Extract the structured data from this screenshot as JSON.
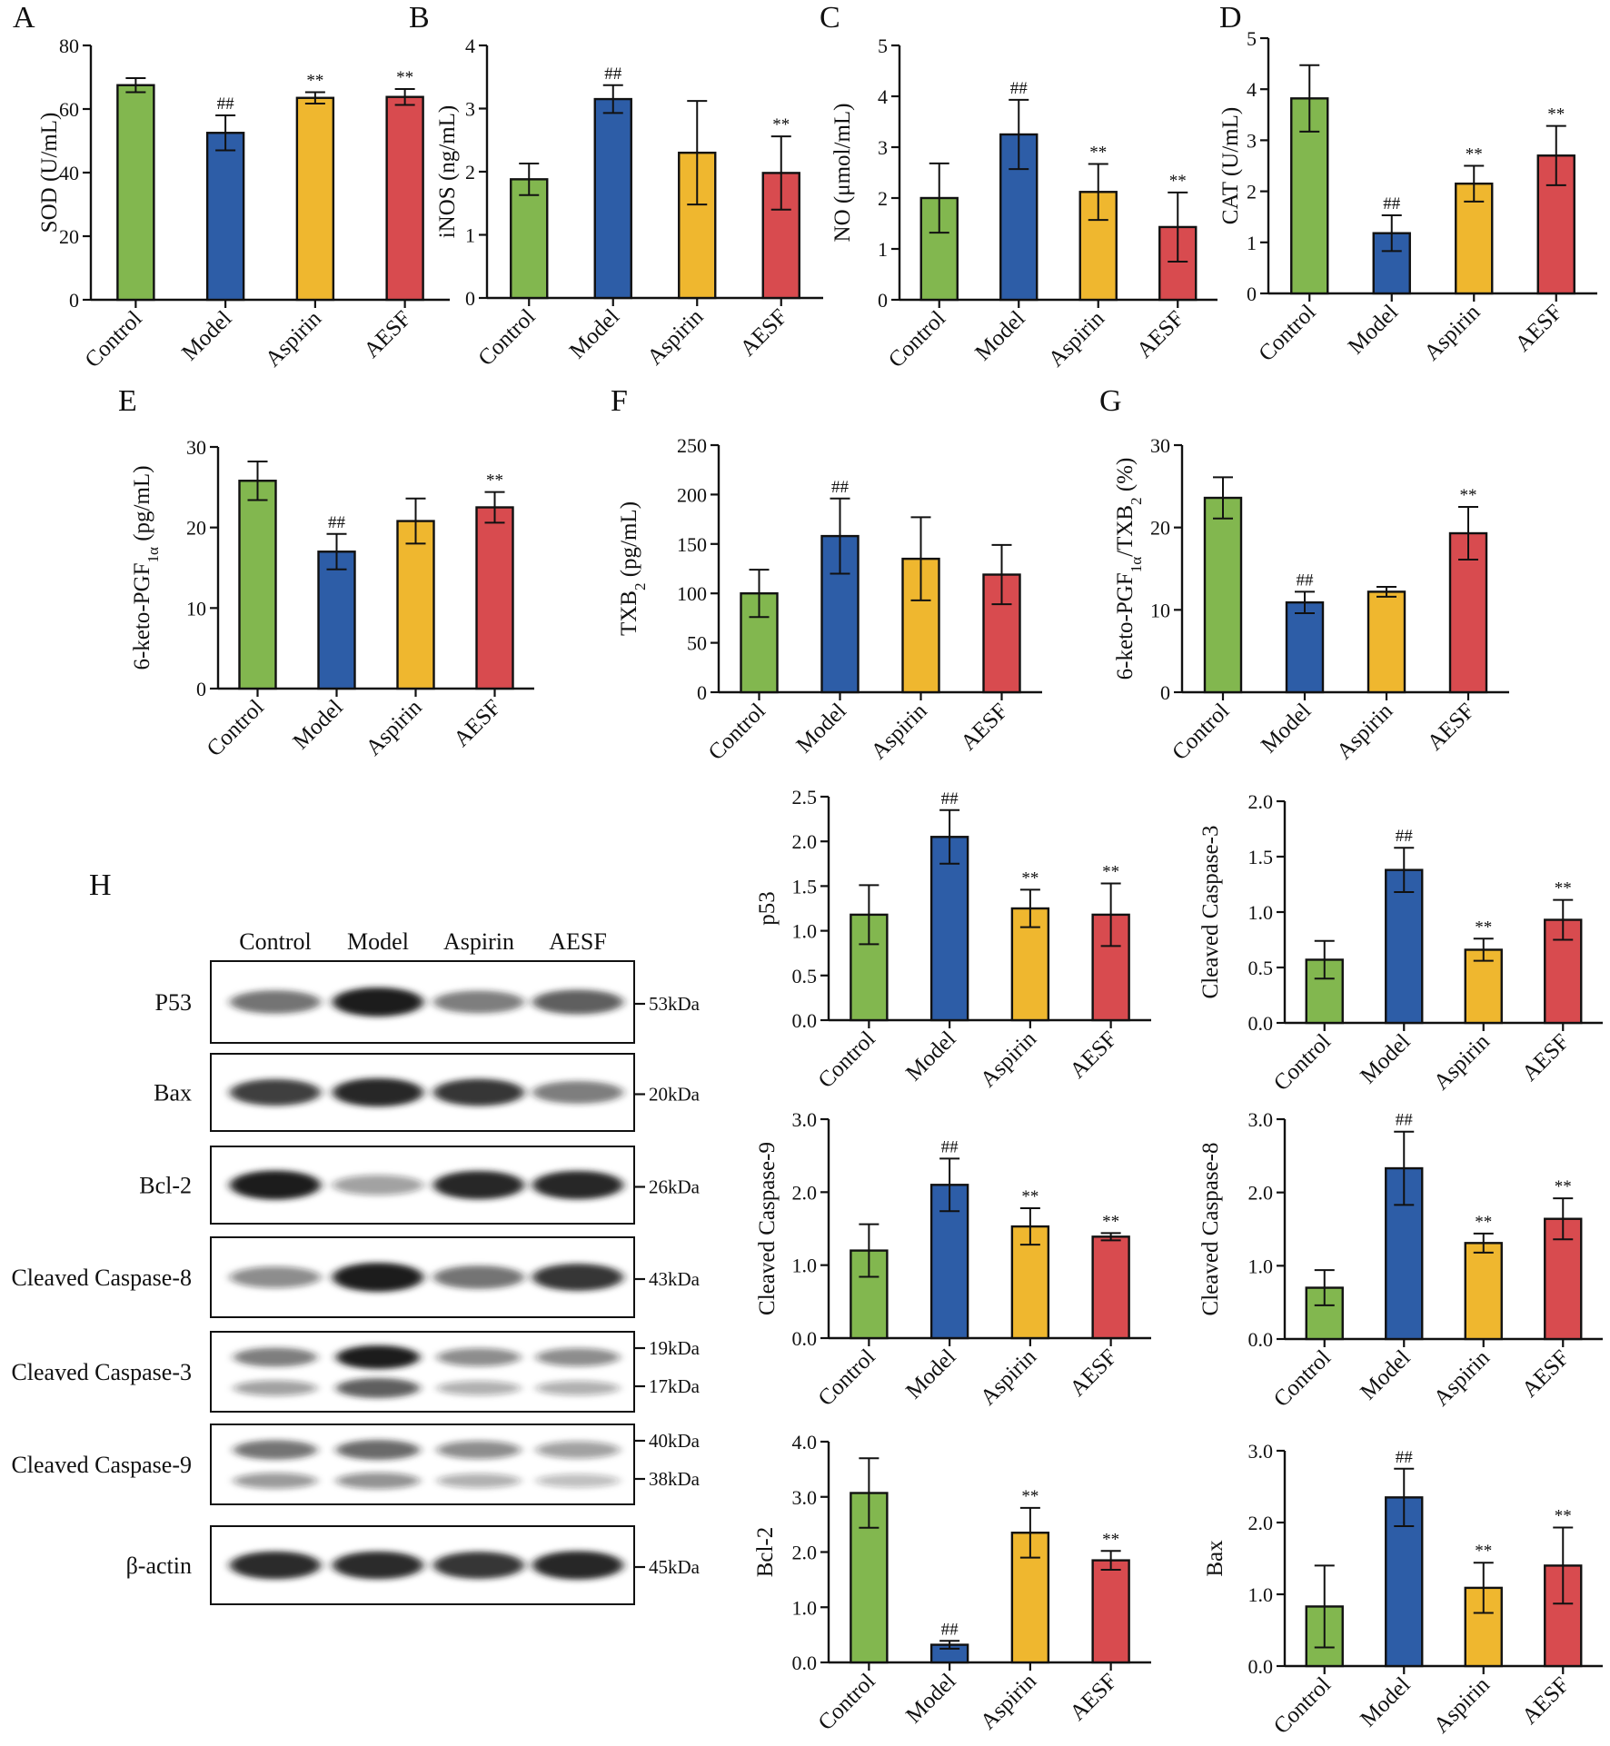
{
  "colors": {
    "Control": "#82b74f",
    "Model": "#2d5da7",
    "Aspirin": "#efb72f",
    "AESF": "#d84b4f"
  },
  "chart_data": [
    {
      "panel": "A",
      "letter": "A",
      "type": "bar",
      "categories": [
        "Control",
        "Model",
        "Aspirin",
        "AESF"
      ],
      "values": [
        67.5,
        52.5,
        63.5,
        63.8
      ],
      "errors": [
        2.2,
        5.5,
        1.8,
        2.5
      ],
      "sig": [
        "",
        "##",
        "**",
        "**"
      ],
      "ylabel": "SOD (U/mL)",
      "ylim": [
        0,
        80
      ],
      "yticks": [
        0,
        20,
        40,
        60,
        80
      ],
      "tick_labels": [
        "0",
        "20",
        "40",
        "60",
        "80"
      ]
    },
    {
      "panel": "B",
      "letter": "B",
      "type": "bar",
      "categories": [
        "Control",
        "Model",
        "Aspirin",
        "AESF"
      ],
      "values": [
        1.88,
        3.15,
        2.3,
        1.98
      ],
      "errors": [
        0.25,
        0.22,
        0.82,
        0.58
      ],
      "sig": [
        "",
        "##",
        "",
        "**"
      ],
      "ylabel": "iNOS (ng/mL)",
      "ylim": [
        0,
        4
      ],
      "yticks": [
        0,
        1,
        2,
        3,
        4
      ],
      "tick_labels": [
        "0",
        "1",
        "2",
        "3",
        "4"
      ]
    },
    {
      "panel": "C",
      "letter": "C",
      "type": "bar",
      "categories": [
        "Control",
        "Model",
        "Aspirin",
        "AESF"
      ],
      "values": [
        2.0,
        3.25,
        2.12,
        1.43
      ],
      "errors": [
        0.68,
        0.68,
        0.55,
        0.68
      ],
      "sig": [
        "",
        "##",
        "**",
        "**"
      ],
      "ylabel": "NO (μmol/mL)",
      "ylim": [
        0,
        5
      ],
      "yticks": [
        0,
        1,
        2,
        3,
        4,
        5
      ],
      "tick_labels": [
        "0",
        "1",
        "2",
        "3",
        "4",
        "5"
      ]
    },
    {
      "panel": "D",
      "letter": "D",
      "type": "bar",
      "categories": [
        "Control",
        "Model",
        "Aspirin",
        "AESF"
      ],
      "values": [
        3.82,
        1.18,
        2.15,
        2.7
      ],
      "errors": [
        0.65,
        0.35,
        0.35,
        0.58
      ],
      "sig": [
        "",
        "##",
        "**",
        "**"
      ],
      "ylabel": "CAT (U/mL)",
      "ylim": [
        0,
        5
      ],
      "yticks": [
        0,
        1,
        2,
        3,
        4,
        5
      ],
      "tick_labels": [
        "0",
        "1",
        "2",
        "3",
        "4",
        "5"
      ]
    },
    {
      "panel": "E",
      "letter": "E",
      "type": "bar",
      "categories": [
        "Control",
        "Model",
        "Aspirin",
        "AESF"
      ],
      "values": [
        25.8,
        17.0,
        20.8,
        22.5
      ],
      "errors": [
        2.4,
        2.2,
        2.8,
        1.9
      ],
      "sig": [
        "",
        "##",
        "",
        "**"
      ],
      "ylabel": "6-keto-PGF",
      "ylabel_sub": "1α",
      "ylabel_tail": " (pg/mL)",
      "ylim": [
        0,
        30
      ],
      "yticks": [
        0,
        10,
        20,
        30
      ],
      "tick_labels": [
        "0",
        "10",
        "20",
        "30"
      ]
    },
    {
      "panel": "F",
      "letter": "F",
      "type": "bar",
      "categories": [
        "Control",
        "Model",
        "Aspirin",
        "AESF"
      ],
      "values": [
        100,
        158,
        135,
        119
      ],
      "errors": [
        24,
        38,
        42,
        30
      ],
      "sig": [
        "",
        "##",
        "",
        ""
      ],
      "ylabel": "TXB",
      "ylabel_sub": "2",
      "ylabel_tail": " (pg/mL)",
      "ylim": [
        0,
        250
      ],
      "yticks": [
        0,
        50,
        100,
        150,
        200,
        250
      ],
      "tick_labels": [
        "0",
        "50",
        "100",
        "150",
        "200",
        "250"
      ]
    },
    {
      "panel": "G",
      "letter": "G",
      "type": "bar",
      "categories": [
        "Control",
        "Model",
        "Aspirin",
        "AESF"
      ],
      "values": [
        23.6,
        10.9,
        12.2,
        19.3
      ],
      "errors": [
        2.5,
        1.3,
        0.6,
        3.2
      ],
      "sig": [
        "",
        "##",
        "",
        "**"
      ],
      "ylabel": "6-keto-PGF",
      "ylabel_sub": "1α",
      "ylabel_tail": "/TXB",
      "ylabel_sub2": "2",
      "ylabel_tail2": " (%)",
      "ylim": [
        0,
        30
      ],
      "yticks": [
        0,
        10,
        20,
        30
      ],
      "tick_labels": [
        "0",
        "10",
        "20",
        "30"
      ]
    },
    {
      "panel": "p53",
      "letter": "",
      "type": "bar",
      "categories": [
        "Control",
        "Model",
        "Aspirin",
        "AESF"
      ],
      "values": [
        1.18,
        2.05,
        1.25,
        1.18
      ],
      "errors": [
        0.33,
        0.3,
        0.21,
        0.35
      ],
      "sig": [
        "",
        "##",
        "**",
        "**"
      ],
      "ylabel": "p53",
      "ylim": [
        0,
        2.5
      ],
      "yticks": [
        0,
        0.5,
        1.0,
        1.5,
        2.0,
        2.5
      ],
      "tick_labels": [
        "0.0",
        "0.5",
        "1.0",
        "1.5",
        "2.0",
        "2.5"
      ]
    },
    {
      "panel": "cc3",
      "letter": "",
      "type": "bar",
      "categories": [
        "Control",
        "Model",
        "Aspirin",
        "AESF"
      ],
      "values": [
        0.57,
        1.38,
        0.66,
        0.93
      ],
      "errors": [
        0.17,
        0.2,
        0.1,
        0.18
      ],
      "sig": [
        "",
        "##",
        "**",
        "**"
      ],
      "ylabel": "Cleaved Caspase-3",
      "ylim": [
        0,
        2.0
      ],
      "yticks": [
        0,
        0.5,
        1.0,
        1.5,
        2.0
      ],
      "tick_labels": [
        "0.0",
        "0.5",
        "1.0",
        "1.5",
        "2.0"
      ]
    },
    {
      "panel": "cc9",
      "letter": "",
      "type": "bar",
      "categories": [
        "Control",
        "Model",
        "Aspirin",
        "AESF"
      ],
      "values": [
        1.2,
        2.1,
        1.53,
        1.39
      ],
      "errors": [
        0.36,
        0.36,
        0.25,
        0.05
      ],
      "sig": [
        "",
        "##",
        "**",
        "**"
      ],
      "ylabel": "Cleaved Caspase-9",
      "ylim": [
        0,
        3.0
      ],
      "yticks": [
        0,
        1.0,
        2.0,
        3.0
      ],
      "tick_labels": [
        "0.0",
        "1.0",
        "2.0",
        "3.0"
      ]
    },
    {
      "panel": "cc8",
      "letter": "",
      "type": "bar",
      "categories": [
        "Control",
        "Model",
        "Aspirin",
        "AESF"
      ],
      "values": [
        0.7,
        2.33,
        1.31,
        1.64
      ],
      "errors": [
        0.24,
        0.5,
        0.13,
        0.28
      ],
      "sig": [
        "",
        "##",
        "**",
        "**"
      ],
      "ylabel": "Cleaved Caspase-8",
      "ylim": [
        0,
        3.0
      ],
      "yticks": [
        0,
        1.0,
        2.0,
        3.0
      ],
      "tick_labels": [
        "0.0",
        "1.0",
        "2.0",
        "3.0"
      ]
    },
    {
      "panel": "bcl2",
      "letter": "",
      "type": "bar",
      "categories": [
        "Control",
        "Model",
        "Aspirin",
        "AESF"
      ],
      "values": [
        3.07,
        0.32,
        2.35,
        1.85
      ],
      "errors": [
        0.63,
        0.07,
        0.45,
        0.17
      ],
      "sig": [
        "",
        "##",
        "**",
        "**"
      ],
      "ylabel": "Bcl-2",
      "ylim": [
        0,
        4.0
      ],
      "yticks": [
        0,
        1.0,
        2.0,
        3.0,
        4.0
      ],
      "tick_labels": [
        "0.0",
        "1.0",
        "2.0",
        "3.0",
        "4.0"
      ]
    },
    {
      "panel": "bax",
      "letter": "",
      "type": "bar",
      "categories": [
        "Control",
        "Model",
        "Aspirin",
        "AESF"
      ],
      "values": [
        0.83,
        2.35,
        1.09,
        1.4
      ],
      "errors": [
        0.57,
        0.4,
        0.35,
        0.53
      ],
      "sig": [
        "",
        "##",
        "**",
        "**"
      ],
      "ylabel": "Bax",
      "ylim": [
        0,
        3.0
      ],
      "yticks": [
        0,
        1.0,
        2.0,
        3.0
      ],
      "tick_labels": [
        "0.0",
        "1.0",
        "2.0",
        "3.0"
      ]
    }
  ],
  "western_blot": {
    "letter": "H",
    "lanes": [
      "Control",
      "Model",
      "Aspirin",
      "AESF"
    ],
    "strips": [
      {
        "label": "P53",
        "sizes": [
          "53kDa"
        ],
        "intensities": [
          0.55,
          1.0,
          0.5,
          0.65
        ]
      },
      {
        "label": "Bax",
        "sizes": [
          "20kDa"
        ],
        "intensities": [
          0.8,
          0.95,
          0.85,
          0.5
        ]
      },
      {
        "label": "Bcl-2",
        "sizes": [
          "26kDa"
        ],
        "intensities": [
          1.0,
          0.3,
          0.95,
          0.95
        ]
      },
      {
        "label": "Cleaved Caspase-8",
        "sizes": [
          "43kDa"
        ],
        "intensities": [
          0.4,
          1.0,
          0.55,
          0.85
        ]
      },
      {
        "label": "Cleaved Caspase-3",
        "sizes": [
          "19kDa",
          "17kDa"
        ],
        "intensities": [
          0.5,
          1.0,
          0.4,
          0.4
        ]
      },
      {
        "label": "Cleaved Caspase-9",
        "sizes": [
          "40kDa",
          "38kDa"
        ],
        "intensities": [
          0.55,
          0.6,
          0.4,
          0.3
        ]
      },
      {
        "label": "β-actin",
        "sizes": [
          "45kDa"
        ],
        "intensities": [
          0.9,
          0.9,
          0.85,
          0.95
        ]
      }
    ]
  }
}
